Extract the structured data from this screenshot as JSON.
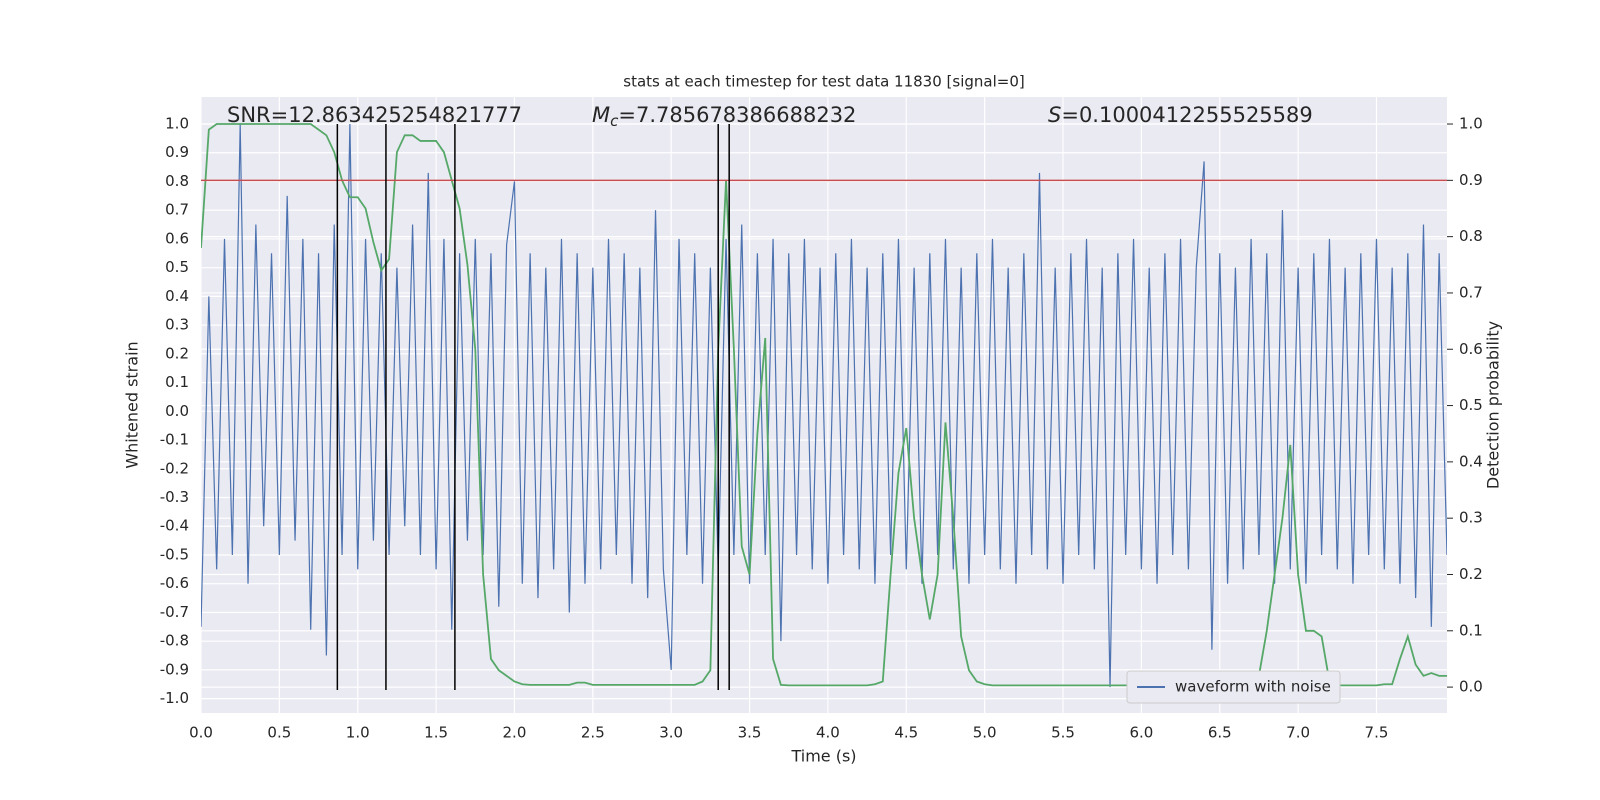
{
  "chart_data": {
    "type": "line",
    "title": "stats at each timestep for test data 11830 [signal=0]",
    "xlabel": "Time (s)",
    "ylabel": "Whitened strain",
    "y2label": "Detection probability",
    "annotations": [
      {
        "text": "SNR=12.863425254821777"
      },
      {
        "symbol": "M",
        "subscript": "c",
        "text": "=7.785678386688232"
      },
      {
        "symbol": "S",
        "text": "=0.1000412255525589"
      }
    ],
    "x": [
      0,
      0.05,
      0.1,
      0.15,
      0.2,
      0.25,
      0.3,
      0.35,
      0.4,
      0.45,
      0.5,
      0.55,
      0.6,
      0.65,
      0.7,
      0.75,
      0.8,
      0.85,
      0.9,
      0.95,
      1,
      1.05,
      1.1,
      1.15,
      1.2,
      1.25,
      1.3,
      1.35,
      1.4,
      1.45,
      1.5,
      1.55,
      1.6,
      1.65,
      1.7,
      1.75,
      1.8,
      1.85,
      1.9,
      1.95,
      2,
      2.05,
      2.1,
      2.15,
      2.2,
      2.25,
      2.3,
      2.35,
      2.4,
      2.45,
      2.5,
      2.55,
      2.6,
      2.65,
      2.7,
      2.75,
      2.8,
      2.85,
      2.9,
      2.95,
      3,
      3.05,
      3.1,
      3.15,
      3.2,
      3.25,
      3.3,
      3.35,
      3.4,
      3.45,
      3.5,
      3.55,
      3.6,
      3.65,
      3.7,
      3.75,
      3.8,
      3.85,
      3.9,
      3.95,
      4,
      4.05,
      4.1,
      4.15,
      4.2,
      4.25,
      4.3,
      4.35,
      4.4,
      4.45,
      4.5,
      4.55,
      4.6,
      4.65,
      4.7,
      4.75,
      4.8,
      4.85,
      4.9,
      4.95,
      5,
      5.05,
      5.1,
      5.15,
      5.2,
      5.25,
      5.3,
      5.35,
      5.4,
      5.45,
      5.5,
      5.55,
      5.6,
      5.65,
      5.7,
      5.75,
      5.8,
      5.85,
      5.9,
      5.95,
      6,
      6.05,
      6.1,
      6.15,
      6.2,
      6.25,
      6.3,
      6.35,
      6.4,
      6.45,
      6.5,
      6.55,
      6.6,
      6.65,
      6.7,
      6.75,
      6.8,
      6.85,
      6.9,
      6.95,
      7,
      7.05,
      7.1,
      7.15,
      7.2,
      7.25,
      7.3,
      7.35,
      7.4,
      7.45,
      7.5,
      7.55,
      7.6,
      7.65,
      7.7,
      7.75,
      7.8,
      7.85,
      7.9,
      7.95
    ],
    "series": [
      {
        "name": "waveform with noise",
        "color": "#4c72b0",
        "axis": "y",
        "values": [
          -0.75,
          0.4,
          -0.55,
          0.6,
          -0.5,
          1.0,
          -0.6,
          0.65,
          -0.4,
          0.55,
          -0.5,
          0.75,
          -0.45,
          0.6,
          -0.76,
          0.55,
          -0.85,
          0.65,
          -0.5,
          1.0,
          -0.55,
          0.6,
          -0.45,
          0.55,
          -0.5,
          0.5,
          -0.4,
          0.65,
          -0.5,
          0.83,
          -0.55,
          0.6,
          -0.76,
          0.55,
          -0.45,
          0.6,
          -0.5,
          0.55,
          -0.68,
          0.58,
          0.8,
          -0.6,
          0.55,
          -0.65,
          0.5,
          -0.55,
          0.6,
          -0.7,
          0.55,
          -0.6,
          0.5,
          -0.55,
          0.6,
          -0.5,
          0.55,
          -0.6,
          0.5,
          -0.65,
          0.7,
          -0.55,
          -0.9,
          0.6,
          -0.5,
          0.55,
          -0.6,
          0.5,
          -0.55,
          0.6,
          -0.5,
          0.65,
          -0.6,
          0.55,
          -0.5,
          0.6,
          -0.8,
          0.55,
          -0.5,
          0.6,
          -0.55,
          0.5,
          -0.6,
          0.55,
          -0.5,
          0.6,
          -0.55,
          0.5,
          -0.6,
          0.55,
          -0.5,
          0.6,
          -0.55,
          0.5,
          -0.6,
          0.55,
          -0.5,
          0.6,
          -0.55,
          0.5,
          -0.6,
          0.55,
          -0.5,
          0.6,
          -0.55,
          0.5,
          -0.6,
          0.55,
          -0.5,
          0.83,
          -0.55,
          0.5,
          -0.6,
          0.55,
          -0.5,
          0.6,
          -0.55,
          0.5,
          -0.96,
          0.55,
          -0.5,
          0.6,
          -0.55,
          0.5,
          -0.6,
          0.55,
          -0.5,
          0.6,
          -0.55,
          0.5,
          0.87,
          -0.83,
          0.55,
          -0.6,
          0.5,
          -0.55,
          0.6,
          -0.5,
          0.55,
          -0.6,
          0.7,
          -0.55,
          0.5,
          -0.6,
          0.55,
          -0.5,
          0.6,
          -0.55,
          0.5,
          -0.6,
          0.55,
          -0.5,
          0.6,
          -0.55,
          0.5,
          -0.6,
          0.55,
          -0.65,
          0.65,
          -0.75,
          0.55,
          -0.5
        ]
      },
      {
        "color": "#55a868",
        "axis": "y2",
        "values": [
          0.78,
          0.99,
          1.0,
          1.0,
          1.0,
          1.0,
          1.0,
          1.0,
          1.0,
          1.0,
          1.0,
          1.0,
          1.0,
          1.0,
          1.0,
          0.99,
          0.98,
          0.95,
          0.9,
          0.87,
          0.87,
          0.85,
          0.79,
          0.74,
          0.76,
          0.95,
          0.98,
          0.98,
          0.97,
          0.97,
          0.97,
          0.95,
          0.9,
          0.85,
          0.75,
          0.6,
          0.2,
          0.05,
          0.03,
          0.02,
          0.01,
          0.005,
          0.004,
          0.004,
          0.004,
          0.004,
          0.004,
          0.004,
          0.008,
          0.008,
          0.004,
          0.004,
          0.004,
          0.004,
          0.004,
          0.004,
          0.004,
          0.004,
          0.004,
          0.004,
          0.004,
          0.004,
          0.004,
          0.004,
          0.01,
          0.03,
          0.6,
          0.9,
          0.6,
          0.25,
          0.2,
          0.45,
          0.62,
          0.05,
          0.004,
          0.003,
          0.003,
          0.003,
          0.003,
          0.003,
          0.003,
          0.003,
          0.003,
          0.003,
          0.003,
          0.003,
          0.005,
          0.01,
          0.2,
          0.38,
          0.46,
          0.3,
          0.2,
          0.12,
          0.2,
          0.47,
          0.3,
          0.09,
          0.03,
          0.01,
          0.005,
          0.003,
          0.003,
          0.003,
          0.003,
          0.003,
          0.003,
          0.003,
          0.003,
          0.003,
          0.003,
          0.003,
          0.003,
          0.003,
          0.003,
          0.003,
          0.003,
          0.003,
          0.003,
          0.003,
          0.003,
          0.003,
          0.003,
          0.003,
          0.003,
          0.003,
          0.005,
          0.01,
          0.015,
          0.02,
          0.015,
          0.005,
          0.004,
          0.004,
          0.005,
          0.02,
          0.1,
          0.2,
          0.3,
          0.43,
          0.2,
          0.1,
          0.1,
          0.09,
          0.01,
          0.003,
          0.003,
          0.003,
          0.003,
          0.003,
          0.003,
          0.005,
          0.005,
          0.05,
          0.09,
          0.04,
          0.02,
          0.025,
          0.02,
          0.02
        ]
      }
    ],
    "vlines": [
      0.87,
      1.18,
      1.62,
      3.3,
      3.37
    ],
    "vline_color": "#000000",
    "vline_ylim": [
      -0.97,
      1.0
    ],
    "threshold_y2": 0.9,
    "threshold_color": "#c44e52",
    "xlim": [
      0,
      7.95
    ],
    "ylim": [
      -1.05,
      1.094
    ],
    "y2lim": [
      -0.046,
      1.048
    ],
    "xticks": [
      {
        "value": 0,
        "label": "0.0"
      },
      0.5,
      {
        "value": 1,
        "label": "1.0"
      },
      1.5,
      {
        "value": 2,
        "label": "2.0"
      },
      2.5,
      {
        "value": 3,
        "label": "3.0"
      },
      3.5,
      {
        "value": 4,
        "label": "4.0"
      },
      4.5,
      {
        "value": 5,
        "label": "5.0"
      },
      5.5,
      {
        "value": 6,
        "label": "6.0"
      },
      6.5,
      {
        "value": 7,
        "label": "7.0"
      },
      7.5
    ],
    "yticks": [
      {
        "value": 1,
        "label": "1.0"
      },
      0.9,
      0.8,
      0.7,
      0.6,
      0.5,
      0.4,
      0.3,
      0.2,
      0.1,
      {
        "value": 0,
        "label": "0.0"
      },
      -0.1,
      -0.2,
      -0.3,
      -0.4,
      -0.5,
      -0.6,
      -0.7,
      -0.8,
      -0.9,
      {
        "value": -1,
        "label": "-1.0"
      }
    ],
    "y2ticks": [
      {
        "value": 1,
        "label": "1.0"
      },
      0.9,
      0.8,
      0.7,
      0.6,
      0.5,
      0.4,
      0.3,
      0.2,
      0.1,
      {
        "value": 0,
        "label": "0.0"
      }
    ],
    "grid": true,
    "legend": "lower right"
  }
}
